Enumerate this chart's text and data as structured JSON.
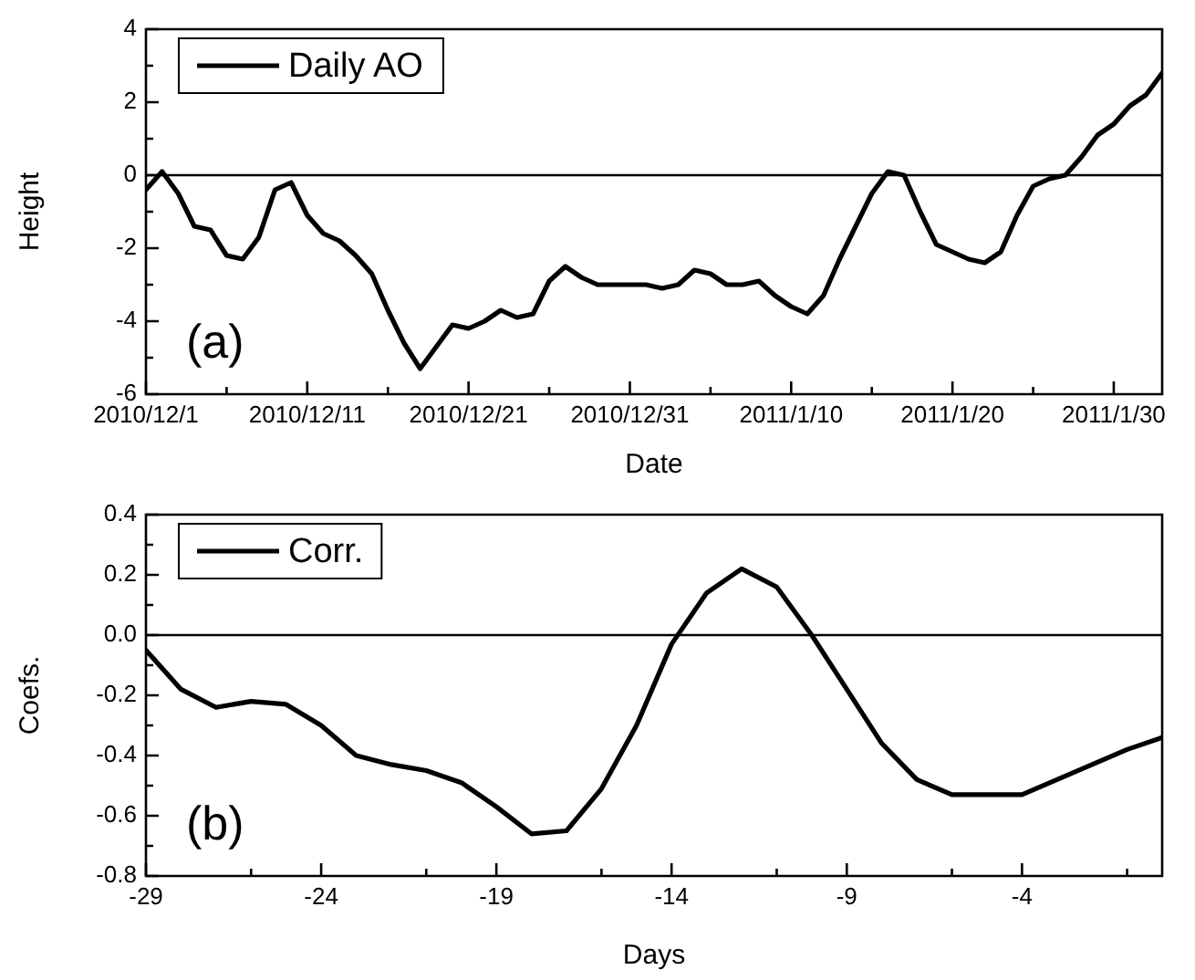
{
  "chart_data": [
    {
      "type": "line",
      "xlabel": "Date",
      "ylabel": "Height",
      "legend": "top left",
      "annotations": [
        "(a)"
      ],
      "x": [
        "2010-12-01",
        "2010-12-02",
        "2010-12-03",
        "2010-12-04",
        "2010-12-05",
        "2010-12-06",
        "2010-12-07",
        "2010-12-08",
        "2010-12-09",
        "2010-12-10",
        "2010-12-11",
        "2010-12-12",
        "2010-12-13",
        "2010-12-14",
        "2010-12-15",
        "2010-12-16",
        "2010-12-17",
        "2010-12-18",
        "2010-12-19",
        "2010-12-20",
        "2010-12-21",
        "2010-12-22",
        "2010-12-23",
        "2010-12-24",
        "2010-12-25",
        "2010-12-26",
        "2010-12-27",
        "2010-12-28",
        "2010-12-29",
        "2010-12-30",
        "2010-12-31",
        "2011-01-01",
        "2011-01-02",
        "2011-01-03",
        "2011-01-04",
        "2011-01-05",
        "2011-01-06",
        "2011-01-07",
        "2011-01-08",
        "2011-01-09",
        "2011-01-10",
        "2011-01-11",
        "2011-01-12",
        "2011-01-13",
        "2011-01-14",
        "2011-01-15",
        "2011-01-16",
        "2011-01-17",
        "2011-01-18",
        "2011-01-19",
        "2011-01-20",
        "2011-01-21",
        "2011-01-22",
        "2011-01-23",
        "2011-01-24",
        "2011-01-25",
        "2011-01-26",
        "2011-01-27",
        "2011-01-28",
        "2011-01-29",
        "2011-01-30",
        "2011-01-31",
        "2011-02-01",
        "2011-02-02"
      ],
      "series": [
        {
          "name": "Daily AO",
          "color": "#000000",
          "values": [
            -0.4,
            0.1,
            -0.5,
            -1.4,
            -1.5,
            -2.2,
            -2.3,
            -1.7,
            -0.4,
            -0.2,
            -1.1,
            -1.6,
            -1.8,
            -2.2,
            -2.7,
            -3.7,
            -4.6,
            -5.3,
            -4.7,
            -4.1,
            -4.2,
            -4.0,
            -3.7,
            -3.9,
            -3.8,
            -2.9,
            -2.5,
            -2.8,
            -3.0,
            -3.0,
            -3.0,
            -3.0,
            -3.1,
            -3.0,
            -2.6,
            -2.7,
            -3.0,
            -3.0,
            -2.9,
            -3.3,
            -3.6,
            -3.8,
            -3.3,
            -2.3,
            -1.4,
            -0.5,
            0.1,
            0.0,
            -1.0,
            -1.9,
            -2.1,
            -2.3,
            -2.4,
            -2.1,
            -1.1,
            -0.3,
            -0.1,
            0.0,
            0.5,
            1.1,
            1.4,
            1.9,
            2.2,
            2.8
          ]
        }
      ],
      "xlim": [
        "2010-12-01",
        "2011-02-02"
      ],
      "xticks": [
        {
          "value": "2010-12-01",
          "label": "2010/12/1"
        },
        {
          "value": "2010-12-06",
          "label": null
        },
        {
          "value": "2010-12-11",
          "label": "2010/12/11"
        },
        {
          "value": "2010-12-16",
          "label": null
        },
        {
          "value": "2010-12-21",
          "label": "2010/12/21"
        },
        {
          "value": "2010-12-26",
          "label": null
        },
        {
          "value": "2010-12-31",
          "label": "2010/12/31"
        },
        {
          "value": "2011-01-05",
          "label": null
        },
        {
          "value": "2011-01-10",
          "label": "2011/1/10"
        },
        {
          "value": "2011-01-15",
          "label": null
        },
        {
          "value": "2011-01-20",
          "label": "2011/1/20"
        },
        {
          "value": "2011-01-25",
          "label": null
        },
        {
          "value": "2011-01-30",
          "label": "2011/1/30"
        }
      ],
      "ylim": [
        -6,
        4
      ],
      "yticks": [
        -6,
        {
          "value": -5,
          "label": null
        },
        -4,
        {
          "value": -3,
          "label": null
        },
        -2,
        {
          "value": -1,
          "label": null
        },
        0,
        {
          "value": 1,
          "label": null
        },
        2,
        {
          "value": 3,
          "label": null
        },
        4
      ],
      "ref_lines": [
        {
          "axis": "y",
          "value": 0,
          "color": "#000000"
        }
      ]
    },
    {
      "type": "line",
      "xlabel": "Days",
      "ylabel": "Coefs.",
      "legend": "top left",
      "annotations": [
        "(b)"
      ],
      "x": [
        -29,
        -28,
        -27,
        -26,
        -25,
        -24,
        -23,
        -22,
        -21,
        -20,
        -19,
        -18,
        -17,
        -16,
        -15,
        -14,
        -13,
        -12,
        -11,
        -10,
        -9,
        -8,
        -7,
        -6,
        -5,
        -4,
        -3,
        -2,
        -1,
        0
      ],
      "series": [
        {
          "name": "Corr.",
          "color": "#000000",
          "values": [
            -0.05,
            -0.18,
            -0.24,
            -0.22,
            -0.23,
            -0.3,
            -0.4,
            -0.43,
            -0.45,
            -0.49,
            -0.57,
            -0.66,
            -0.65,
            -0.51,
            -0.3,
            -0.03,
            0.14,
            0.22,
            0.16,
            0.0,
            -0.18,
            -0.36,
            -0.48,
            -0.53,
            -0.53,
            -0.53,
            -0.48,
            -0.43,
            -0.38,
            -0.34
          ]
        }
      ],
      "xlim": [
        -29,
        0
      ],
      "xticks": [
        -29,
        {
          "value": -26,
          "label": null
        },
        -24,
        {
          "value": -21,
          "label": null
        },
        -19,
        {
          "value": -16,
          "label": null
        },
        -14,
        {
          "value": -11,
          "label": null
        },
        -9,
        {
          "value": -6,
          "label": null
        },
        -4,
        {
          "value": -1,
          "label": null
        }
      ],
      "ylim": [
        -0.8,
        0.4
      ],
      "yticks": [
        {
          "value": -0.8,
          "label": "-0.8"
        },
        {
          "value": -0.7,
          "label": null
        },
        {
          "value": -0.6,
          "label": "-0.6"
        },
        {
          "value": -0.5,
          "label": null
        },
        {
          "value": -0.4,
          "label": "-0.4"
        },
        {
          "value": -0.3,
          "label": null
        },
        {
          "value": -0.2,
          "label": "-0.2"
        },
        {
          "value": -0.1,
          "label": null
        },
        {
          "value": 0,
          "label": "0.0"
        },
        {
          "value": 0.1,
          "label": null
        },
        {
          "value": 0.2,
          "label": "0.2"
        },
        {
          "value": 0.3,
          "label": null
        },
        {
          "value": 0.4,
          "label": "0.4"
        }
      ],
      "ref_lines": [
        {
          "axis": "y",
          "value": 0,
          "color": "#000000"
        }
      ]
    }
  ]
}
